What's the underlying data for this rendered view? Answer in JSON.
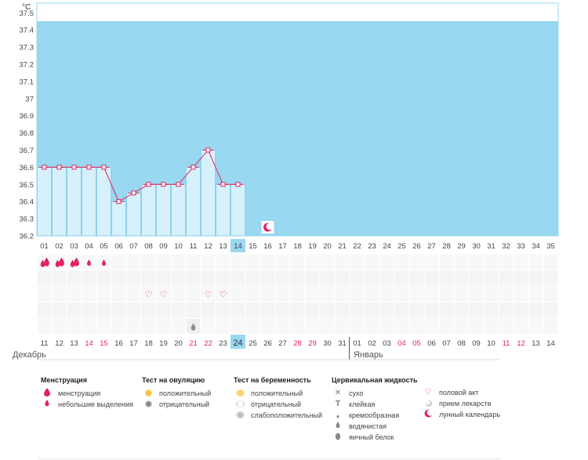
{
  "chart_data": {
    "type": "line",
    "unit_label": "°C",
    "ylim": [
      36.2,
      37.6
    ],
    "y_ticks": [
      "37.5",
      "37.4",
      "37.3",
      "37.2",
      "37.1",
      "37",
      "36.9",
      "36.8",
      "36.7",
      "36.6",
      "36.5",
      "36.4",
      "36.3",
      "36.2"
    ],
    "cycle_days": [
      "01",
      "02",
      "03",
      "04",
      "05",
      "06",
      "07",
      "08",
      "09",
      "10",
      "11",
      "12",
      "13",
      "14",
      "15",
      "16",
      "17",
      "18",
      "19",
      "20",
      "21",
      "22",
      "23",
      "24",
      "25",
      "26",
      "27",
      "28",
      "29",
      "30",
      "31",
      "32",
      "33",
      "34",
      "35"
    ],
    "selected_day_index": 13,
    "temperatures": [
      36.6,
      36.6,
      36.6,
      36.6,
      36.6,
      36.4,
      36.45,
      36.5,
      36.5,
      36.5,
      36.6,
      36.7,
      36.5,
      36.5
    ],
    "moon_day_index": 15,
    "dates": [
      "11",
      "12",
      "13",
      "14",
      "15",
      "16",
      "17",
      "18",
      "19",
      "20",
      "21",
      "22",
      "23",
      "24",
      "25",
      "26",
      "27",
      "28",
      "29",
      "30",
      "31",
      "01",
      "02",
      "03",
      "04",
      "05",
      "06",
      "07",
      "08",
      "09",
      "10",
      "11",
      "12",
      "13",
      "14"
    ],
    "red_date_indices": [
      3,
      4,
      10,
      11,
      17,
      18,
      24,
      25,
      31,
      32
    ],
    "selected_date_index": 13,
    "month_boundary_index": 21,
    "months": [
      "Декабрь",
      "Январь"
    ],
    "menstruation": {
      "heavy": [
        0,
        1,
        2
      ],
      "light": [
        3,
        4
      ]
    },
    "intercourse": [
      7,
      8,
      11,
      12
    ],
    "mucus_watery": [
      10
    ]
  },
  "legend": {
    "menstruation": {
      "title": "Менструация",
      "items": [
        "менструация",
        "небольшие выделения"
      ]
    },
    "ovulation_test": {
      "title": "Тест на овуляцию",
      "items": [
        "положительный",
        "отрицательный"
      ]
    },
    "pregnancy_test": {
      "title": "Тест на беременность",
      "items": [
        "положительный",
        "отрицательный",
        "слабоположительный"
      ]
    },
    "cervical_fluid": {
      "title": "Цервикальная жидкость",
      "items": [
        "сухо",
        "клейкая",
        "кремообразная",
        "водянистая",
        "яичный белок"
      ]
    },
    "other": {
      "items": [
        "половой акт",
        "прием лекарств",
        "лунный календарь"
      ]
    }
  },
  "colors": {
    "plot_bg": "#98d8f0",
    "bar_fill": "#d6f0fc",
    "bar_stroke": "#8fd0ee",
    "line": "#e0245e",
    "selected": "#98d8f0",
    "accent": "#e0245e"
  }
}
